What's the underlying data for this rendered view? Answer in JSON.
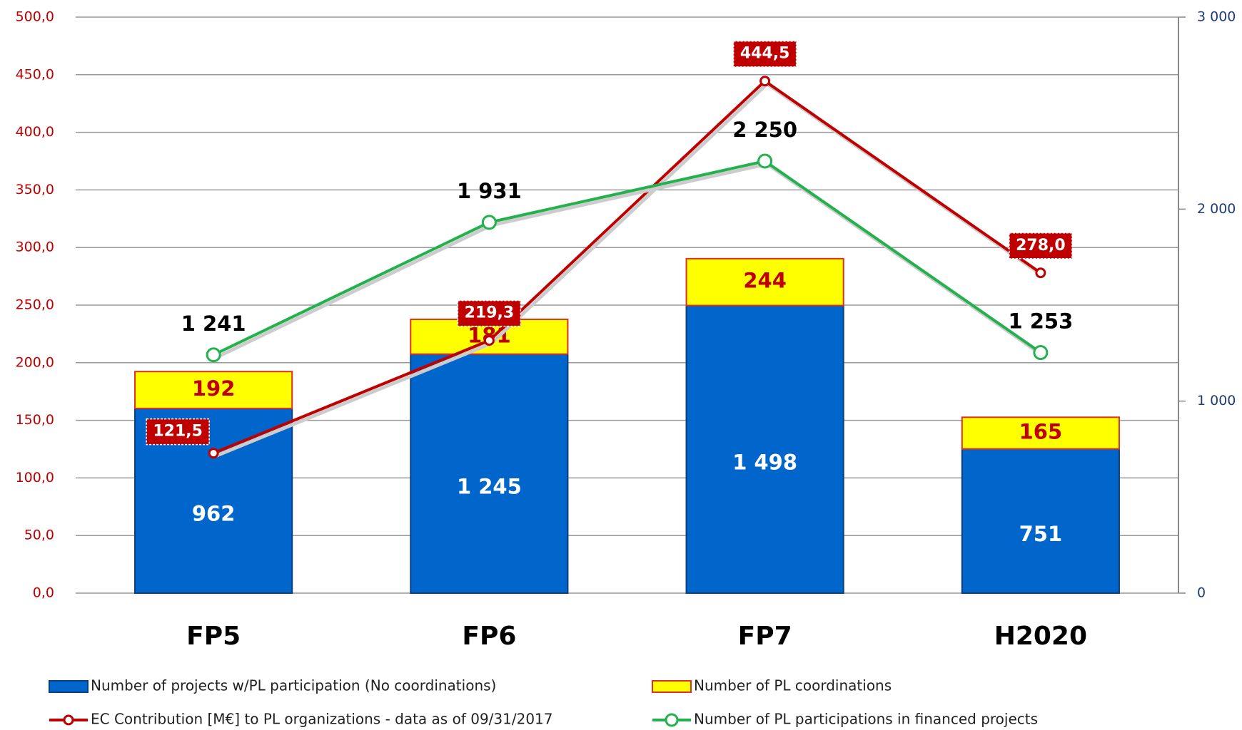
{
  "chart_data": {
    "type": "bar",
    "categories": [
      "FP5",
      "FP6",
      "FP7",
      "H2020"
    ],
    "series": [
      {
        "name": "Number of projects w/PL participation (No coordinations)",
        "type": "bar",
        "color": "#0066cc",
        "axis": "y2",
        "values": [
          962,
          1245,
          1498,
          751
        ],
        "value_labels": [
          "962",
          "1 245",
          "1 498",
          "751"
        ]
      },
      {
        "name": "Number of PL coordinations",
        "type": "bar",
        "color": "#ffff00",
        "axis": "y2",
        "values": [
          192,
          181,
          244,
          165
        ]
      },
      {
        "name": "EC Contribution [M€] to PL organizations - data as of 09/31/2017",
        "type": "line",
        "color": "#c00000",
        "values": [
          121.5,
          219.3,
          444.5,
          278.0
        ],
        "value_labels": [
          "121,5",
          "219,3",
          "444,5",
          "278,0"
        ]
      },
      {
        "name": "Number of PL participations in financed projects",
        "type": "line",
        "color": "#22b14c",
        "axis": "y2",
        "values": [
          1241,
          1931,
          2250,
          1253
        ],
        "value_labels": [
          "1 241",
          "1 931",
          "2 250",
          "1 253"
        ]
      }
    ],
    "ylim": [
      0,
      500
    ],
    "yticks": [
      {
        "value": 0,
        "label": "0,0"
      },
      {
        "value": 50,
        "label": "50,0"
      },
      {
        "value": 100,
        "label": "100,0"
      },
      {
        "value": 150,
        "label": "150,0"
      },
      {
        "value": 200,
        "label": "200,0"
      },
      {
        "value": 250,
        "label": "250,0"
      },
      {
        "value": 300,
        "label": "300,0"
      },
      {
        "value": 350,
        "label": "350,0"
      },
      {
        "value": 400,
        "label": "400,0"
      },
      {
        "value": 450,
        "label": "450,0"
      },
      {
        "value": 500,
        "label": "500,0"
      }
    ],
    "y2lim": [
      0,
      3000
    ],
    "y2ticks": [
      0,
      {
        "value": 1000,
        "label": "1 000"
      },
      {
        "value": 2000,
        "label": "2 000"
      },
      {
        "value": 3000,
        "label": "3 000"
      }
    ],
    "grid": true,
    "legend": "bottom"
  }
}
